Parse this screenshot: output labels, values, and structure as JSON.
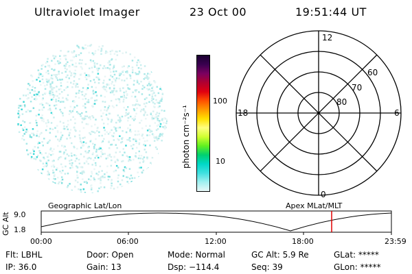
{
  "header": {
    "instrument": "Ultraviolet Imager",
    "date": "23 Oct 00",
    "time": "19:51:44 UT"
  },
  "colorbar": {
    "label": "photon cm⁻²s⁻¹",
    "ticks": [
      "100",
      "10"
    ],
    "colors": [
      "#1a0030",
      "#3a0050",
      "#7a0060",
      "#b00030",
      "#e00010",
      "#ff5000",
      "#ff9a00",
      "#ffe000",
      "#ffff80",
      "#d0ff30",
      "#60f020",
      "#00d070",
      "#00d8c8",
      "#40e0e0",
      "#a0f0f0",
      "#e8f8f8"
    ]
  },
  "polar": {
    "mlt": {
      "top": "12",
      "left": "18",
      "right": "6",
      "bottom": "0"
    },
    "lats": [
      "60",
      "70",
      "80"
    ]
  },
  "timeline": {
    "left_title": "Geographic Lat/Lon",
    "right_title": "Apex MLat/MLT",
    "ylabel": "GC Alt",
    "y_ticks": [
      "9.0",
      "1.8"
    ],
    "x_ticks": [
      "00:00",
      "06:00",
      "12:00",
      "18:00",
      "23:59"
    ]
  },
  "status": {
    "flt": "Flt: LBHL",
    "ip": "IP: 36.0",
    "door": "Door: Open",
    "gain": "Gain: 13",
    "mode": "Mode: Normal",
    "dsp": "Dsp: −114.4",
    "gcalt": "GC Alt: 5.9 Re",
    "seq": "Seq: 39",
    "glat": "GLat: *****",
    "glon": "GLon: *****"
  }
}
